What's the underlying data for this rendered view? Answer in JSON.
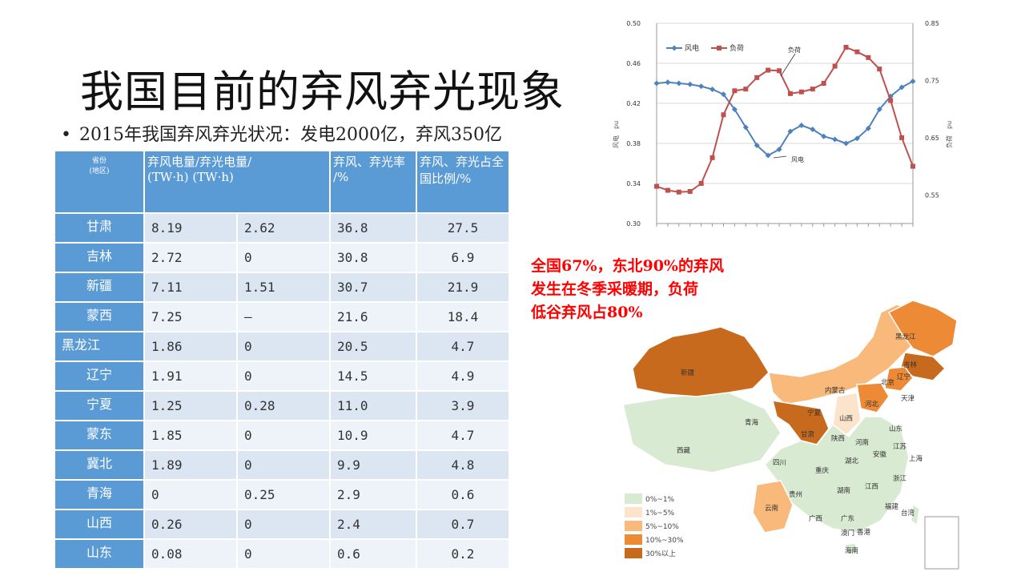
{
  "title": "我国目前的弃风弃光现象",
  "bullet": "2015年我国弃风弃光状况：发电2000亿，弃风350亿",
  "table": {
    "headers": {
      "region_line1": "省份",
      "region_line2": "(地区)",
      "wind_power": "弃风电量/",
      "unit_pair": "(TW·h) (TW·h)",
      "solar_power": "弃光电量/",
      "rate_line1": " 弃风、弃光率",
      "rate_line2": "/%",
      "share_line1": "弃风、弃光占全",
      "share_line2": "国比例/%"
    },
    "rows": [
      {
        "region": "甘肃",
        "wind": "8.19",
        "solar": "2.62",
        "rate": "36.8",
        "share": "27.5"
      },
      {
        "region": "吉林",
        "wind": "2.72",
        "solar": " 0",
        "rate": "30.8",
        "share": "6.9"
      },
      {
        "region": "新疆",
        "wind": "7.11",
        "solar": "1.51",
        "rate": "30.7",
        "share": "21.9"
      },
      {
        "region": "蒙西",
        "wind": "7.25",
        "solar": " —",
        "rate": "21.6",
        "share": "18.4"
      },
      {
        "region": "黑龙江",
        "wind": "1.86",
        "solar": " 0",
        "rate": "20.5",
        "share": "4.7"
      },
      {
        "region": "辽宁",
        "wind": "1.91",
        "solar": " 0",
        "rate": "14.5",
        "share": "4.9"
      },
      {
        "region": "宁夏",
        "wind": "1.25",
        "solar": "0.28",
        "rate": "11.0",
        "share": "3.9"
      },
      {
        "region": "蒙东",
        "wind": "1.85",
        "solar": " 0",
        "rate": "10.9",
        "share": "4.7"
      },
      {
        "region": "冀北",
        "wind": "1.89",
        "solar": " 0",
        "rate": "9.9",
        "share": "4.8"
      },
      {
        "region": "青海",
        "wind": " 0",
        "solar": "0.25",
        "rate": " 2.9",
        "share": "0.6"
      },
      {
        "region": "山西",
        "wind": "0.26",
        "solar": " 0",
        "rate": " 2.4",
        "share": "0.7"
      },
      {
        "region": "山东",
        "wind": "0.08",
        "solar": " 0",
        "rate": " 0.6",
        "share": "0.2"
      }
    ]
  },
  "note_lines": [
    "全国67%，东北90%的弃风",
    "发生在冬季采暖期，负荷",
    "低谷弃风占80%"
  ],
  "chart_data": {
    "type": "line",
    "series": [
      {
        "name": "风电",
        "axis": "left",
        "color": "#4f81bd",
        "values": [
          0.44,
          0.441,
          0.44,
          0.439,
          0.437,
          0.434,
          0.429,
          0.414,
          0.396,
          0.378,
          0.368,
          0.374,
          0.392,
          0.398,
          0.394,
          0.387,
          0.384,
          0.38,
          0.385,
          0.395,
          0.414,
          0.427,
          0.436,
          0.442
        ]
      },
      {
        "name": "负荷",
        "axis": "right",
        "color": "#c0504d",
        "values": [
          0.565,
          0.558,
          0.555,
          0.556,
          0.57,
          0.615,
          0.69,
          0.732,
          0.735,
          0.755,
          0.768,
          0.767,
          0.727,
          0.73,
          0.735,
          0.745,
          0.775,
          0.808,
          0.8,
          0.79,
          0.77,
          0.715,
          0.65,
          0.6
        ]
      }
    ],
    "left_axis": {
      "label": "风电　pu",
      "ticks": [
        "0.50",
        "0.46",
        "0.42",
        "0.38",
        "0.34",
        "0.30"
      ],
      "ylim": [
        0.3,
        0.5
      ]
    },
    "right_axis": {
      "label": "负荷　pu",
      "ticks": [
        "0.85",
        "0.75",
        "0.65",
        "0.55"
      ],
      "ylim": [
        0.5,
        0.85
      ]
    },
    "annotations": {
      "load": "负荷",
      "wind": "风电"
    },
    "legend": "top-left",
    "grid": true
  },
  "map": {
    "legend": [
      {
        "label": "0%~1%",
        "color": "#d9ead3"
      },
      {
        "label": "1%~5%",
        "color": "#fce4cc"
      },
      {
        "label": "5%~10%",
        "color": "#f8b97a"
      },
      {
        "label": "10%~30%",
        "color": "#ed8a36"
      },
      {
        "label": "30%以上",
        "color": "#c86a1d"
      }
    ],
    "province_labels": [
      "黑龙江",
      "吉林",
      "辽宁",
      "新疆",
      "内蒙古",
      "北京",
      "天津",
      "河北",
      "宁夏",
      "山西",
      "山东",
      "青海",
      "甘肃",
      "陕西",
      "河南",
      "西藏",
      "四川",
      "重庆",
      "湖北",
      "安徽",
      "江苏",
      "上海",
      "浙江",
      "贵州",
      "湖南",
      "江西",
      "福建",
      "云南",
      "广西",
      "广东",
      "台湾",
      "香港",
      "澳门",
      "海南"
    ]
  }
}
